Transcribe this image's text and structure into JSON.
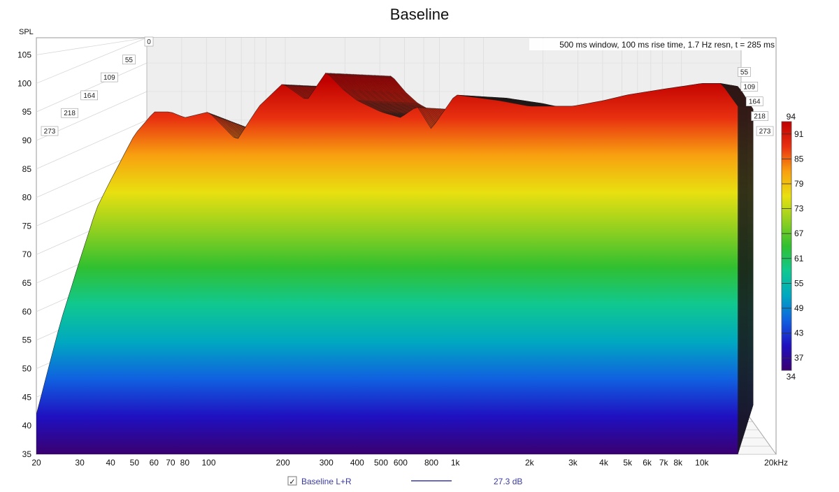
{
  "chart_data": {
    "type": "waterfall",
    "title": "Baseline",
    "ylabel": "SPL",
    "x_unit": "kHz",
    "x_scale": "log",
    "xlim": [
      20,
      20000
    ],
    "ylim": [
      35,
      108
    ],
    "x_ticks": [
      20,
      30,
      40,
      50,
      60,
      70,
      80,
      100,
      200,
      300,
      400,
      500,
      600,
      800,
      1000,
      2000,
      3000,
      4000,
      5000,
      6000,
      7000,
      8000,
      10000,
      20000
    ],
    "x_tick_labels": [
      "20",
      "30",
      "40",
      "50",
      "60",
      "70",
      "80",
      "100",
      "200",
      "300",
      "400",
      "500",
      "600",
      "800",
      "1k",
      "2k",
      "3k",
      "4k",
      "5k",
      "6k",
      "7k",
      "8k",
      "10k",
      "20kHz"
    ],
    "y_ticks": [
      35,
      40,
      45,
      50,
      55,
      60,
      65,
      70,
      75,
      80,
      85,
      90,
      95,
      100,
      105
    ],
    "time_ticks_ms": [
      0,
      55,
      109,
      164,
      218,
      273
    ],
    "time_tick_labels": [
      "0",
      "55",
      "109",
      "164",
      "218",
      "273"
    ],
    "info_text": "500 ms window, 100 ms rise time,  1.7 Hz resn, t = 285 ms",
    "colorbar": {
      "min": 34,
      "max": 94,
      "ticks": [
        37,
        43,
        49,
        55,
        61,
        67,
        73,
        79,
        85,
        91
      ],
      "tick_labels": [
        "37",
        "43",
        "49",
        "55",
        "61",
        "67",
        "73",
        "79",
        "85",
        "91"
      ],
      "min_label": "34",
      "max_label": "94",
      "colors": [
        "#3a0070",
        "#1f10c0",
        "#1060e0",
        "#00a8c0",
        "#10c890",
        "#30c030",
        "#90d020",
        "#e8e010",
        "#f8a010",
        "#e83010",
        "#c00000"
      ]
    },
    "front_response": {
      "frequency_hz": [
        20,
        25,
        30,
        35,
        40,
        50,
        60,
        70,
        80,
        100,
        130,
        160,
        200,
        250,
        300,
        350,
        400,
        500,
        600,
        700,
        800,
        1000,
        1500,
        2000,
        3000,
        4000,
        5000,
        7000,
        10000,
        12000,
        14000
      ],
      "spl_db": [
        42,
        58,
        69,
        78,
        83,
        91,
        95,
        95,
        94,
        95,
        90,
        96,
        100,
        97,
        102,
        99,
        97,
        95,
        94,
        96,
        92,
        98,
        97,
        96,
        96,
        97,
        98,
        99,
        100,
        100,
        96
      ]
    },
    "legend": [
      {
        "checked": true,
        "checkbox_glyph": "✓",
        "name": "Baseline L+R",
        "line_color": "#3a3aa0",
        "value": "27.3 dB"
      }
    ],
    "grid": true
  }
}
